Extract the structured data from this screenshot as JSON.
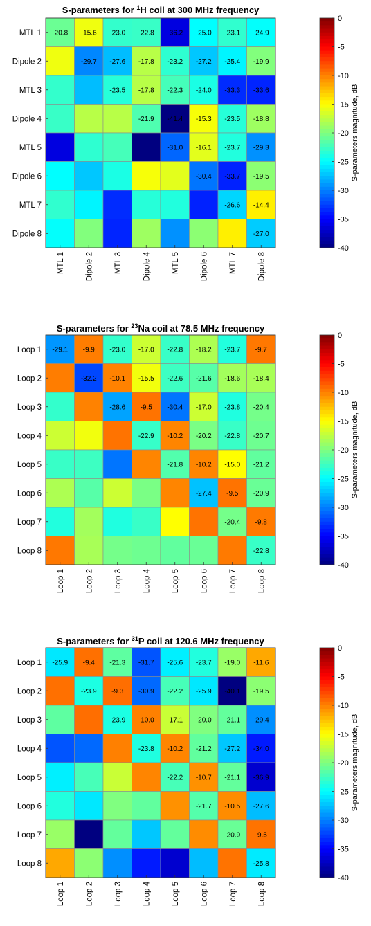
{
  "colorbar": {
    "label": "S-parameters magnitude, dB",
    "ticks": [
      0,
      -5,
      -10,
      -15,
      -20,
      -25,
      -30,
      -35,
      -40
    ],
    "range": [
      -40,
      0
    ],
    "colormap": "jet"
  },
  "chart_data": [
    {
      "type": "heatmap",
      "title_prefix": "S-parameters for ",
      "title_sup": "1",
      "title_suffix": "H coil at 300 MHz frequency",
      "rows": [
        "MTL 1",
        "Dipole 2",
        "MTL 3",
        "Dipole 4",
        "MTL 5",
        "Dipole 6",
        "MTL 7",
        "Dipole 8"
      ],
      "cols": [
        "MTL 1",
        "Dipole 2",
        "MTL 3",
        "Dipole 4",
        "MTL 5",
        "Dipole 6",
        "MTL 7",
        "Dipole 8"
      ],
      "values": [
        [
          -20.8,
          -15.6,
          -23.0,
          -22.8,
          -36.2,
          -25.0,
          -23.1,
          -24.9
        ],
        [
          -15.6,
          -29.7,
          -27.6,
          -17.8,
          -23.2,
          -27.2,
          -25.4,
          -19.9
        ],
        [
          -23.0,
          -27.6,
          -23.5,
          -17.8,
          -22.3,
          -24.0,
          -33.3,
          -33.6
        ],
        [
          -22.8,
          -17.8,
          -17.8,
          -21.9,
          -41.4,
          -15.3,
          -23.5,
          -18.8
        ],
        [
          -36.2,
          -23.2,
          -22.3,
          -41.4,
          -31.0,
          -16.1,
          -23.7,
          -29.3
        ],
        [
          -25.0,
          -27.2,
          -24.0,
          -15.3,
          -16.1,
          -30.4,
          -33.7,
          -19.5
        ],
        [
          -23.1,
          -25.4,
          -33.3,
          -23.5,
          -23.7,
          -33.7,
          -26.6,
          -14.4
        ],
        [
          -24.9,
          -19.9,
          -33.6,
          -18.8,
          -29.3,
          -19.5,
          -14.4,
          -27.0
        ]
      ],
      "labels": [
        [
          "-20.8",
          "-15.6",
          "-23.0",
          "-22.8",
          "-36.2",
          "-25.0",
          "-23.1",
          "-24.9"
        ],
        [
          "",
          "-29.7",
          "-27.6",
          "-17.8",
          "-23.2",
          "-27.2",
          "-25.4",
          "-19.9"
        ],
        [
          "",
          "",
          "-23.5",
          "-17.8",
          "-22.3",
          "-24.0",
          "-33.3",
          "-33.6"
        ],
        [
          "",
          "",
          "",
          "-21.9",
          "-41.4",
          "-15.3",
          "-23.5",
          "-18.8"
        ],
        [
          "",
          "",
          "",
          "",
          "-31.0",
          "-16.1",
          "-23.7",
          "-29.3"
        ],
        [
          "",
          "",
          "",
          "",
          "",
          "-30.4",
          "-33.7",
          "-19.5"
        ],
        [
          "",
          "",
          "",
          "",
          "",
          "",
          "-26.6",
          "-14.4"
        ],
        [
          "",
          "",
          "",
          "",
          "",
          "",
          "",
          "-27.0"
        ]
      ]
    },
    {
      "type": "heatmap",
      "title_prefix": "S-parameters for ",
      "title_sup": "23",
      "title_suffix": "Na coil at 78.5 MHz frequency",
      "rows": [
        "Loop 1",
        "Loop 2",
        "Loop 3",
        "Loop 4",
        "Loop 5",
        "Loop 6",
        "Loop 7",
        "Loop 8"
      ],
      "cols": [
        "Loop 1",
        "Loop 2",
        "Loop 3",
        "Loop 4",
        "Loop 5",
        "Loop 6",
        "Loop 7",
        "Loop 8"
      ],
      "values": [
        [
          -29.1,
          -9.9,
          -23.0,
          -17.0,
          -22.8,
          -18.2,
          -23.7,
          -9.7
        ],
        [
          -9.9,
          -32.2,
          -10.1,
          -15.5,
          -22.6,
          -21.6,
          -18.6,
          -18.4
        ],
        [
          -23.0,
          -10.1,
          -28.6,
          -9.5,
          -30.4,
          -17.0,
          -23.8,
          -20.4
        ],
        [
          -17.0,
          -15.5,
          -9.5,
          -22.9,
          -10.2,
          -20.2,
          -22.8,
          -20.7
        ],
        [
          -22.8,
          -22.6,
          -30.4,
          -10.2,
          -21.8,
          -10.2,
          -15.0,
          -21.2
        ],
        [
          -18.2,
          -21.6,
          -17.0,
          -20.2,
          -10.2,
          -27.4,
          -9.5,
          -20.9
        ],
        [
          -23.7,
          -18.6,
          -23.8,
          -22.8,
          -15.0,
          -9.5,
          -20.4,
          -9.8
        ],
        [
          -9.7,
          -18.4,
          -20.4,
          -20.7,
          -21.2,
          -20.9,
          -9.8,
          -22.8
        ]
      ],
      "labels": [
        [
          "-29.1",
          "-9.9",
          "-23.0",
          "-17.0",
          "-22.8",
          "-18.2",
          "-23.7",
          "-9.7"
        ],
        [
          "",
          "-32.2",
          "-10.1",
          "-15.5",
          "-22.6",
          "-21.6",
          "-18.6",
          "-18.4"
        ],
        [
          "",
          "",
          "-28.6",
          "-9.5",
          "-30.4",
          "-17.0",
          "-23.8",
          "-20.4"
        ],
        [
          "",
          "",
          "",
          "-22.9",
          "-10.2",
          "-20.2",
          "-22.8",
          "-20.7"
        ],
        [
          "",
          "",
          "",
          "",
          "-21.8",
          "-10.2",
          "-15.0",
          "-21.2"
        ],
        [
          "",
          "",
          "",
          "",
          "",
          "-27.4",
          "-9.5",
          "-20.9"
        ],
        [
          "",
          "",
          "",
          "",
          "",
          "",
          "-20.4",
          "-9.8"
        ],
        [
          "",
          "",
          "",
          "",
          "",
          "",
          "",
          "-22.8"
        ]
      ]
    },
    {
      "type": "heatmap",
      "title_prefix": "S-parameters for ",
      "title_sup": "31",
      "title_suffix": "P coil at 120.6 MHz frequency",
      "rows": [
        "Loop 1",
        "Loop 2",
        "Loop 3",
        "Loop 4",
        "Loop 5",
        "Loop 6",
        "Loop 7",
        "Loop 8"
      ],
      "cols": [
        "Loop 1",
        "Loop 2",
        "Loop 3",
        "Loop 4",
        "Loop 5",
        "Loop 6",
        "Loop 7",
        "Loop 8"
      ],
      "values": [
        [
          -25.9,
          -9.4,
          -21.3,
          -31.7,
          -25.6,
          -23.7,
          -19.0,
          -11.6
        ],
        [
          -9.4,
          -23.9,
          -9.3,
          -30.9,
          -22.2,
          -25.9,
          -40.1,
          -19.5
        ],
        [
          -21.3,
          -9.3,
          -23.9,
          -10.0,
          -17.1,
          -20.0,
          -21.1,
          -29.4
        ],
        [
          -31.7,
          -30.9,
          -10.0,
          -23.8,
          -10.2,
          -21.2,
          -27.2,
          -34.0
        ],
        [
          -25.6,
          -22.2,
          -17.1,
          -10.2,
          -22.2,
          -10.7,
          -21.1,
          -36.9
        ],
        [
          -23.7,
          -25.9,
          -20.0,
          -21.2,
          -10.7,
          -21.7,
          -10.5,
          -27.6
        ],
        [
          -19.0,
          -40.1,
          -21.1,
          -27.2,
          -21.1,
          -10.5,
          -20.9,
          -9.5
        ],
        [
          -11.6,
          -19.5,
          -29.4,
          -34.0,
          -36.9,
          -27.6,
          -9.5,
          -25.8
        ]
      ],
      "labels": [
        [
          "-25.9",
          "-9.4",
          "-21.3",
          "-31.7",
          "-25.6",
          "-23.7",
          "-19.0",
          "-11.6"
        ],
        [
          "",
          "-23.9",
          "-9.3",
          "-30.9",
          "-22.2",
          "-25.9",
          "-40.1",
          "-19.5"
        ],
        [
          "",
          "",
          "-23.9",
          "-10.0",
          "-17.1",
          "-20.0",
          "-21.1",
          "-29.4"
        ],
        [
          "",
          "",
          "",
          "-23.8",
          "-10.2",
          "-21.2",
          "-27.2",
          "-34.0"
        ],
        [
          "",
          "",
          "",
          "",
          "-22.2",
          "-10.7",
          "-21.1",
          "-36.9"
        ],
        [
          "",
          "",
          "",
          "",
          "",
          "-21.7",
          "-10.5",
          "-27.6"
        ],
        [
          "",
          "",
          "",
          "",
          "",
          "",
          "-20.9",
          "-9.5"
        ],
        [
          "",
          "",
          "",
          "",
          "",
          "",
          "",
          "-25.8"
        ]
      ]
    }
  ]
}
